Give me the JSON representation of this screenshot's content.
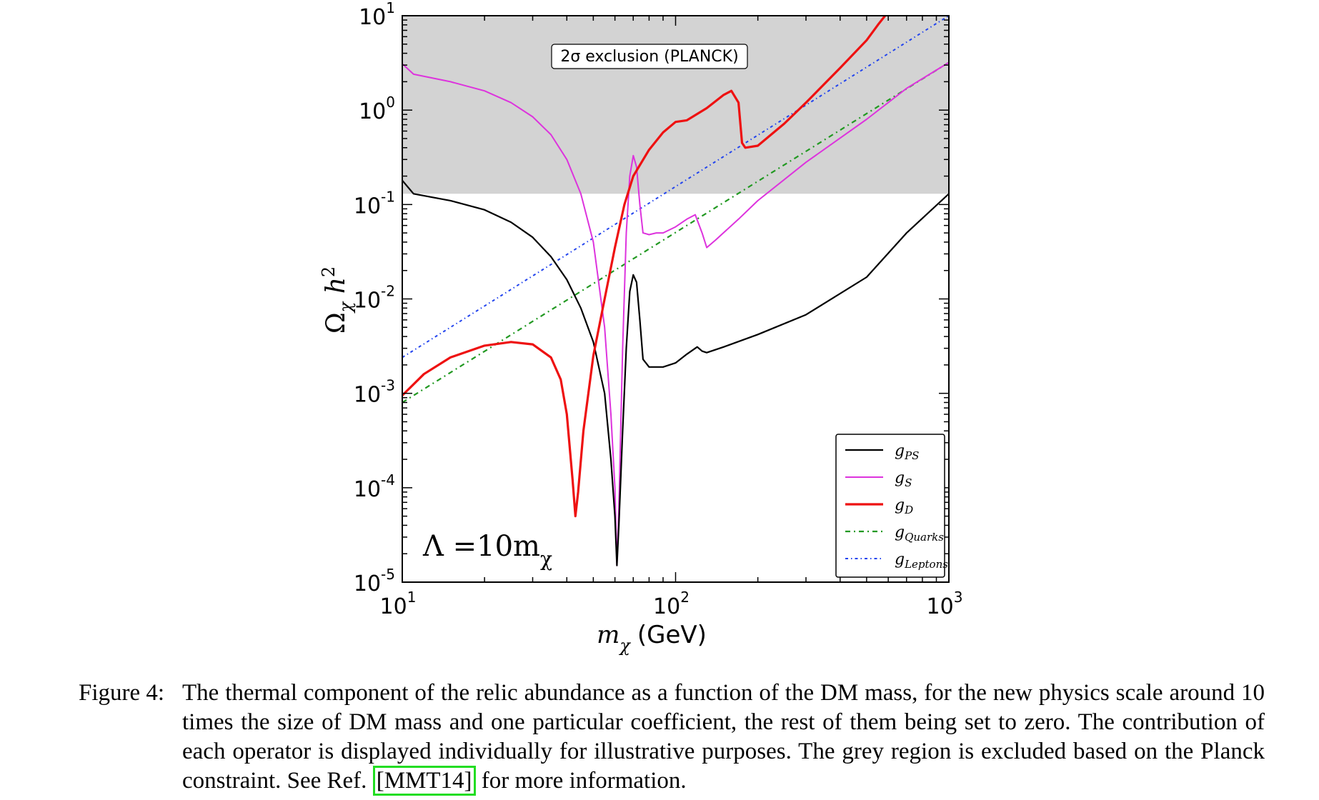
{
  "chart_data": {
    "type": "line",
    "xlabel_main": "m",
    "xlabel_sub": "χ",
    "xlabel_unit": "(GeV)",
    "ylabel_main": "Ω",
    "ylabel_sub": "χ",
    "ylabel_tail": " h",
    "ylabel_sup": "2",
    "x_scale": "log",
    "y_scale": "log",
    "xlim": [
      10,
      1000
    ],
    "ylim": [
      1e-05,
      10
    ],
    "x_ticks": [
      {
        "value": 10,
        "base": "10",
        "exp": "1"
      },
      {
        "value": 100,
        "base": "10",
        "exp": "2"
      },
      {
        "value": 1000,
        "base": "10",
        "exp": "3"
      }
    ],
    "y_ticks": [
      {
        "value": 10,
        "base": "10",
        "exp": "1"
      },
      {
        "value": 1,
        "base": "10",
        "exp": "0"
      },
      {
        "value": 0.1,
        "base": "10",
        "exp": "-1"
      },
      {
        "value": 0.01,
        "base": "10",
        "exp": "-2"
      },
      {
        "value": 0.001,
        "base": "10",
        "exp": "-3"
      },
      {
        "value": 0.0001,
        "base": "10",
        "exp": "-4"
      },
      {
        "value": 1e-05,
        "base": "10",
        "exp": "-5"
      }
    ],
    "exclusion_region": {
      "label": "2σ exclusion (PLANCK)",
      "y_from": 0.13,
      "y_to": 10,
      "color": "#d3d3d3"
    },
    "annotation": {
      "main": "Λ =10m",
      "sub": "χ"
    },
    "legend_position": "bottom-right",
    "series": [
      {
        "name": "g",
        "name_sub": "PS",
        "color": "#000000",
        "width": 2.2,
        "dash": "",
        "points": [
          [
            10,
            0.18
          ],
          [
            11,
            0.13
          ],
          [
            15,
            0.11
          ],
          [
            20,
            0.088
          ],
          [
            25,
            0.065
          ],
          [
            30,
            0.045
          ],
          [
            35,
            0.028
          ],
          [
            40,
            0.016
          ],
          [
            45,
            0.008
          ],
          [
            50,
            0.0035
          ],
          [
            55,
            0.001
          ],
          [
            58,
            0.0002
          ],
          [
            60,
            5e-05
          ],
          [
            61,
            1.5e-05
          ],
          [
            62,
            4e-05
          ],
          [
            64,
            0.0004
          ],
          [
            66,
            0.003
          ],
          [
            68,
            0.012
          ],
          [
            70,
            0.018
          ],
          [
            72,
            0.015
          ],
          [
            74,
            0.006
          ],
          [
            76,
            0.0023
          ],
          [
            80,
            0.0019
          ],
          [
            85,
            0.0019
          ],
          [
            90,
            0.0019
          ],
          [
            100,
            0.0021
          ],
          [
            110,
            0.0026
          ],
          [
            120,
            0.0031
          ],
          [
            125,
            0.0028
          ],
          [
            130,
            0.0027
          ],
          [
            150,
            0.0031
          ],
          [
            200,
            0.0042
          ],
          [
            300,
            0.0068
          ],
          [
            500,
            0.017
          ],
          [
            700,
            0.05
          ],
          [
            1000,
            0.13
          ]
        ]
      },
      {
        "name": "g",
        "name_sub": "S",
        "color": "#dd33dd",
        "width": 2,
        "dash": "",
        "points": [
          [
            10,
            3.1
          ],
          [
            11,
            2.4
          ],
          [
            15,
            2.0
          ],
          [
            20,
            1.6
          ],
          [
            25,
            1.2
          ],
          [
            30,
            0.85
          ],
          [
            35,
            0.55
          ],
          [
            40,
            0.3
          ],
          [
            45,
            0.13
          ],
          [
            50,
            0.04
          ],
          [
            55,
            0.005
          ],
          [
            58,
            0.0006
          ],
          [
            60,
            0.0001
          ],
          [
            61,
            1.5e-05
          ],
          [
            62,
            6e-05
          ],
          [
            64,
            0.003
          ],
          [
            66,
            0.05
          ],
          [
            68,
            0.2
          ],
          [
            70,
            0.33
          ],
          [
            72,
            0.25
          ],
          [
            74,
            0.1
          ],
          [
            76,
            0.05
          ],
          [
            80,
            0.048
          ],
          [
            85,
            0.05
          ],
          [
            90,
            0.05
          ],
          [
            100,
            0.058
          ],
          [
            110,
            0.07
          ],
          [
            118,
            0.078
          ],
          [
            125,
            0.05
          ],
          [
            130,
            0.035
          ],
          [
            140,
            0.042
          ],
          [
            170,
            0.07
          ],
          [
            200,
            0.11
          ],
          [
            300,
            0.28
          ],
          [
            500,
            0.8
          ],
          [
            700,
            1.7
          ],
          [
            1000,
            3.2
          ]
        ]
      },
      {
        "name": "g",
        "name_sub": "D",
        "color": "#ee1111",
        "width": 3.2,
        "dash": "",
        "points": [
          [
            10,
            0.00095
          ],
          [
            12,
            0.0016
          ],
          [
            15,
            0.0024
          ],
          [
            20,
            0.0032
          ],
          [
            25,
            0.0035
          ],
          [
            30,
            0.0033
          ],
          [
            35,
            0.0024
          ],
          [
            38,
            0.0014
          ],
          [
            40,
            0.0006
          ],
          [
            42,
            0.00012
          ],
          [
            43,
            5e-05
          ],
          [
            44,
            9e-05
          ],
          [
            46,
            0.0004
          ],
          [
            50,
            0.0025
          ],
          [
            55,
            0.01
          ],
          [
            60,
            0.035
          ],
          [
            65,
            0.1
          ],
          [
            70,
            0.2
          ],
          [
            80,
            0.38
          ],
          [
            90,
            0.58
          ],
          [
            100,
            0.75
          ],
          [
            110,
            0.78
          ],
          [
            130,
            1.05
          ],
          [
            150,
            1.45
          ],
          [
            160,
            1.6
          ],
          [
            170,
            1.2
          ],
          [
            175,
            0.45
          ],
          [
            180,
            0.4
          ],
          [
            200,
            0.42
          ],
          [
            250,
            0.72
          ],
          [
            300,
            1.2
          ],
          [
            400,
            2.8
          ],
          [
            500,
            5.5
          ],
          [
            550,
            8
          ],
          [
            600,
            11
          ]
        ]
      },
      {
        "name": "g",
        "name_sub": "Quarks",
        "color": "#229922",
        "width": 2.2,
        "dash": "7 5 2 5",
        "points": [
          [
            10,
            0.0008
          ],
          [
            1000,
            3.2
          ]
        ]
      },
      {
        "name": "g",
        "name_sub": "Leptons",
        "color": "#2244ee",
        "width": 2,
        "dash": "4 4 1.5 4",
        "points": [
          [
            10,
            0.0024
          ],
          [
            1000,
            10
          ]
        ]
      }
    ]
  },
  "caption": {
    "label": "Figure 4:",
    "text_before": "The thermal component of the relic abundance as a function of the DM mass, for the new physics scale around 10 times the size of DM mass and one particular coefficient, the rest of them being set to zero. The contribution of each operator is displayed individually for illustrative purposes. The grey region is excluded based on the Planck constraint. See Ref. ",
    "citation": "MMT14",
    "text_after": " for more information."
  }
}
